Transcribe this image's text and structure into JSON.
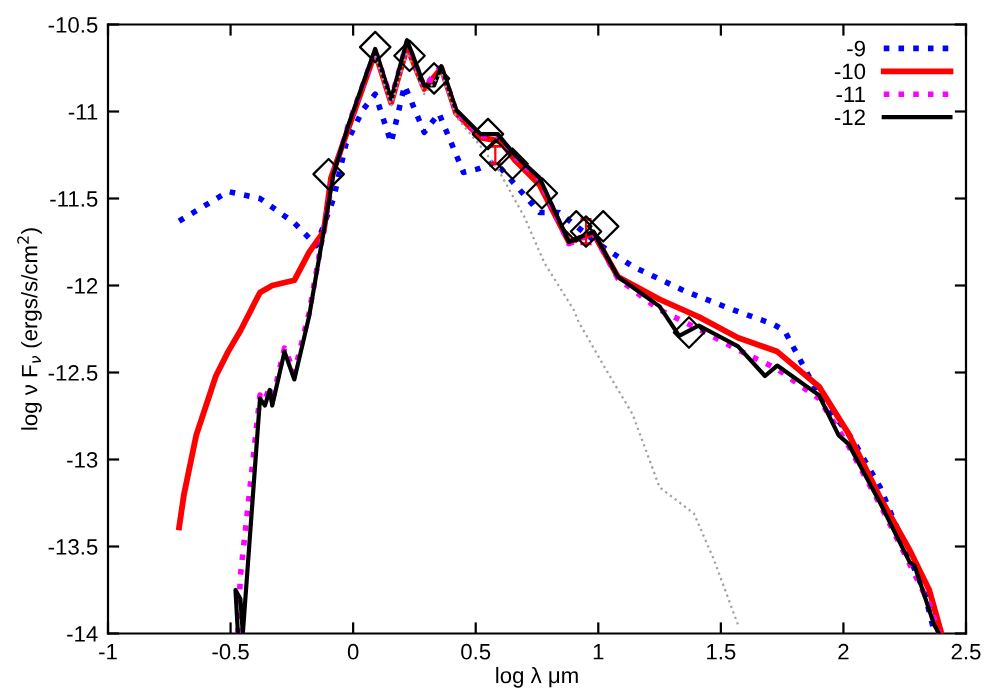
{
  "chart_data": {
    "type": "line",
    "xlabel": "log λ μm",
    "ylabel": "log ν F$_{ν}$ (ergs/s/cm$^{2}$)",
    "xlim": [
      -1,
      2.5
    ],
    "ylim": [
      -14,
      -10.5
    ],
    "xticks": [
      -1,
      -0.5,
      0,
      0.5,
      1,
      1.5,
      2,
      2.5
    ],
    "yticks": [
      -14,
      -13.5,
      -13,
      -12.5,
      -12,
      -11.5,
      -11,
      -10.5
    ],
    "grid": false,
    "legend": "top right",
    "series": [
      {
        "name": "-9",
        "color": "#0000ff",
        "line_style": "dotted",
        "x": [
          -0.71,
          -0.51,
          -0.38,
          -0.24,
          -0.15,
          -0.08,
          -0.03,
          0.04,
          0.09,
          0.155,
          0.21,
          0.29,
          0.35,
          0.45,
          0.51,
          0.58,
          0.76,
          0.84,
          1.0,
          1.14,
          1.35,
          1.55,
          1.71,
          1.76,
          1.9,
          2.04,
          2.15,
          2.25,
          2.33,
          2.37
        ],
        "values": [
          -11.63,
          -11.46,
          -11.5,
          -11.64,
          -11.77,
          -11.5,
          -11.19,
          -10.99,
          -10.9,
          -11.18,
          -10.85,
          -11.12,
          -11.01,
          -11.35,
          -11.33,
          -11.29,
          -11.58,
          -11.58,
          -11.76,
          -11.89,
          -12.03,
          -12.14,
          -12.22,
          -12.26,
          -12.63,
          -12.89,
          -13.16,
          -13.5,
          -13.76,
          -13.99
        ]
      },
      {
        "name": "-10",
        "color": "#ff0000",
        "line_style": "solid",
        "x": [
          -0.71,
          -0.69,
          -0.64,
          -0.56,
          -0.51,
          -0.46,
          -0.38,
          -0.33,
          -0.24,
          -0.18,
          -0.12,
          -0.09,
          -0.02,
          0.09,
          0.155,
          0.22,
          0.29,
          0.36,
          0.42,
          0.52,
          0.6,
          0.66,
          0.76,
          0.88,
          0.98,
          1.08,
          1.25,
          1.41,
          1.57,
          1.73,
          1.9,
          2.02,
          2.15,
          2.27,
          2.35,
          2.4
        ],
        "values": [
          -13.39,
          -13.2,
          -12.86,
          -12.52,
          -12.38,
          -12.26,
          -12.04,
          -12.0,
          -11.97,
          -11.81,
          -11.69,
          -11.38,
          -11.1,
          -10.66,
          -10.95,
          -10.63,
          -10.87,
          -10.75,
          -11.01,
          -11.15,
          -11.17,
          -11.28,
          -11.42,
          -11.75,
          -11.7,
          -11.95,
          -12.08,
          -12.18,
          -12.3,
          -12.38,
          -12.58,
          -12.85,
          -13.22,
          -13.52,
          -13.75,
          -14.0
        ]
      },
      {
        "name": "-11",
        "color": "#ff00ff",
        "line_style": "dotted",
        "x": [
          -0.47,
          -0.46,
          -0.38,
          -0.36,
          -0.34,
          -0.33,
          -0.28,
          -0.24,
          -0.18,
          -0.08,
          -0.02,
          0.09,
          0.155,
          0.22,
          0.29,
          0.36,
          0.42,
          0.52,
          0.59,
          0.66,
          0.76,
          0.88,
          0.98,
          1.08,
          1.25,
          1.41,
          1.57,
          1.73,
          1.9,
          2.02,
          2.15,
          2.27,
          2.35,
          2.39
        ],
        "values": [
          -14.0,
          -13.67,
          -12.63,
          -12.66,
          -12.58,
          -12.66,
          -12.36,
          -12.5,
          -12.16,
          -11.36,
          -11.08,
          -10.65,
          -10.93,
          -10.6,
          -10.86,
          -10.74,
          -11.0,
          -11.14,
          -11.14,
          -11.26,
          -11.39,
          -11.76,
          -11.7,
          -11.96,
          -12.14,
          -12.25,
          -12.37,
          -12.48,
          -12.65,
          -12.92,
          -13.26,
          -13.6,
          -13.83,
          -14.0
        ]
      },
      {
        "name": "-12",
        "color": "#000000",
        "line_style": "solid",
        "x": [
          -0.47,
          -0.48,
          -0.46,
          -0.45,
          -0.38,
          -0.36,
          -0.34,
          -0.33,
          -0.28,
          -0.24,
          -0.18,
          -0.08,
          -0.02,
          0.09,
          0.155,
          0.22,
          0.29,
          0.33,
          0.36,
          0.42,
          0.52,
          0.59,
          0.66,
          0.76,
          0.88,
          0.98,
          1.08,
          1.25,
          1.33,
          1.41,
          1.57,
          1.68,
          1.73,
          1.9,
          1.98,
          2.02,
          2.15,
          2.27,
          2.29,
          2.37,
          2.39
        ],
        "values": [
          -14.0,
          -13.75,
          -13.8,
          -14.0,
          -12.65,
          -12.69,
          -12.6,
          -12.69,
          -12.38,
          -12.54,
          -12.18,
          -11.36,
          -11.08,
          -10.64,
          -10.93,
          -10.59,
          -10.85,
          -10.85,
          -10.74,
          -10.99,
          -11.13,
          -11.13,
          -11.25,
          -11.38,
          -11.75,
          -11.69,
          -11.95,
          -12.12,
          -12.29,
          -12.23,
          -12.35,
          -12.52,
          -12.46,
          -12.63,
          -12.86,
          -12.91,
          -13.25,
          -13.59,
          -13.61,
          -13.95,
          -14.0
        ]
      },
      {
        "color": "#a0a0a0",
        "line_style": "dotted",
        "x": [
          0.09,
          0.155,
          0.22,
          0.29,
          0.36,
          0.42,
          0.52,
          0.59,
          0.7,
          0.78,
          0.9,
          0.92,
          1.03,
          1.14,
          1.25,
          1.39,
          1.47,
          1.57
        ],
        "values": [
          -10.68,
          -10.97,
          -10.66,
          -10.9,
          -10.78,
          -11.03,
          -11.2,
          -11.33,
          -11.61,
          -11.87,
          -12.14,
          -12.21,
          -12.48,
          -12.74,
          -13.16,
          -13.31,
          -13.57,
          -13.95
        ]
      },
      {
        "type": "scatter",
        "color": "#000000",
        "marker": "diamond",
        "x": [
          -0.1,
          0.09,
          0.23,
          0.33,
          0.55,
          0.58,
          0.65,
          0.77,
          0.91,
          0.95,
          1.02,
          1.37
        ],
        "values": [
          -11.36,
          -10.63,
          -10.68,
          -10.81,
          -11.13,
          -11.25,
          -11.3,
          -11.47,
          -11.66,
          -11.69,
          -11.66,
          -12.27
        ],
        "errors": [
          null,
          null,
          null,
          null,
          null,
          0.05,
          null,
          null,
          null,
          0.07,
          null,
          null
        ]
      }
    ]
  }
}
